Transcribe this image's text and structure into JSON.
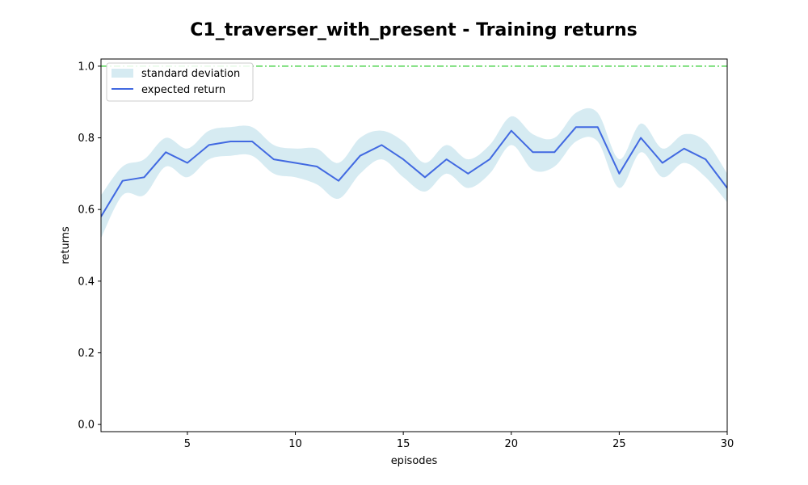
{
  "chart_data": {
    "type": "line",
    "title": "C1_traverser_with_present - Training returns",
    "xlabel": "episodes",
    "ylabel": "returns",
    "xlim": [
      1,
      30
    ],
    "ylim": [
      -0.02,
      1.02
    ],
    "xticks": [
      5,
      10,
      15,
      20,
      25,
      30
    ],
    "yticks": [
      0.0,
      0.2,
      0.4,
      0.6,
      0.8,
      1.0
    ],
    "xtick_labels": [
      "5",
      "10",
      "15",
      "20",
      "25",
      "30"
    ],
    "ytick_labels": [
      "0.0",
      "0.2",
      "0.4",
      "0.6",
      "0.8",
      "1.0"
    ],
    "grid": false,
    "legend_position": "top-left",
    "x": [
      1,
      2,
      3,
      4,
      5,
      6,
      7,
      8,
      9,
      10,
      11,
      12,
      13,
      14,
      15,
      16,
      17,
      18,
      19,
      20,
      21,
      22,
      23,
      24,
      25,
      26,
      27,
      28,
      29,
      30
    ],
    "series": [
      {
        "name": "expected return",
        "color": "#4169e1",
        "values": [
          0.58,
          0.68,
          0.69,
          0.76,
          0.73,
          0.78,
          0.79,
          0.79,
          0.74,
          0.73,
          0.72,
          0.68,
          0.75,
          0.78,
          0.74,
          0.69,
          0.74,
          0.7,
          0.74,
          0.82,
          0.76,
          0.76,
          0.83,
          0.83,
          0.7,
          0.8,
          0.73,
          0.77,
          0.74,
          0.66
        ]
      }
    ],
    "band": {
      "name": "standard deviation",
      "color": "#add8e6",
      "lower": [
        0.52,
        0.64,
        0.64,
        0.72,
        0.69,
        0.74,
        0.75,
        0.75,
        0.7,
        0.69,
        0.67,
        0.63,
        0.7,
        0.74,
        0.69,
        0.65,
        0.7,
        0.66,
        0.7,
        0.78,
        0.71,
        0.72,
        0.79,
        0.79,
        0.66,
        0.76,
        0.69,
        0.73,
        0.69,
        0.62
      ],
      "upper": [
        0.64,
        0.72,
        0.74,
        0.8,
        0.77,
        0.82,
        0.83,
        0.83,
        0.78,
        0.77,
        0.77,
        0.73,
        0.8,
        0.82,
        0.79,
        0.73,
        0.78,
        0.74,
        0.78,
        0.86,
        0.81,
        0.8,
        0.87,
        0.87,
        0.74,
        0.84,
        0.77,
        0.81,
        0.79,
        0.7
      ]
    },
    "reference_line": {
      "value": 1.0,
      "color": "#2ecc2e",
      "style": "dash-dot"
    }
  }
}
